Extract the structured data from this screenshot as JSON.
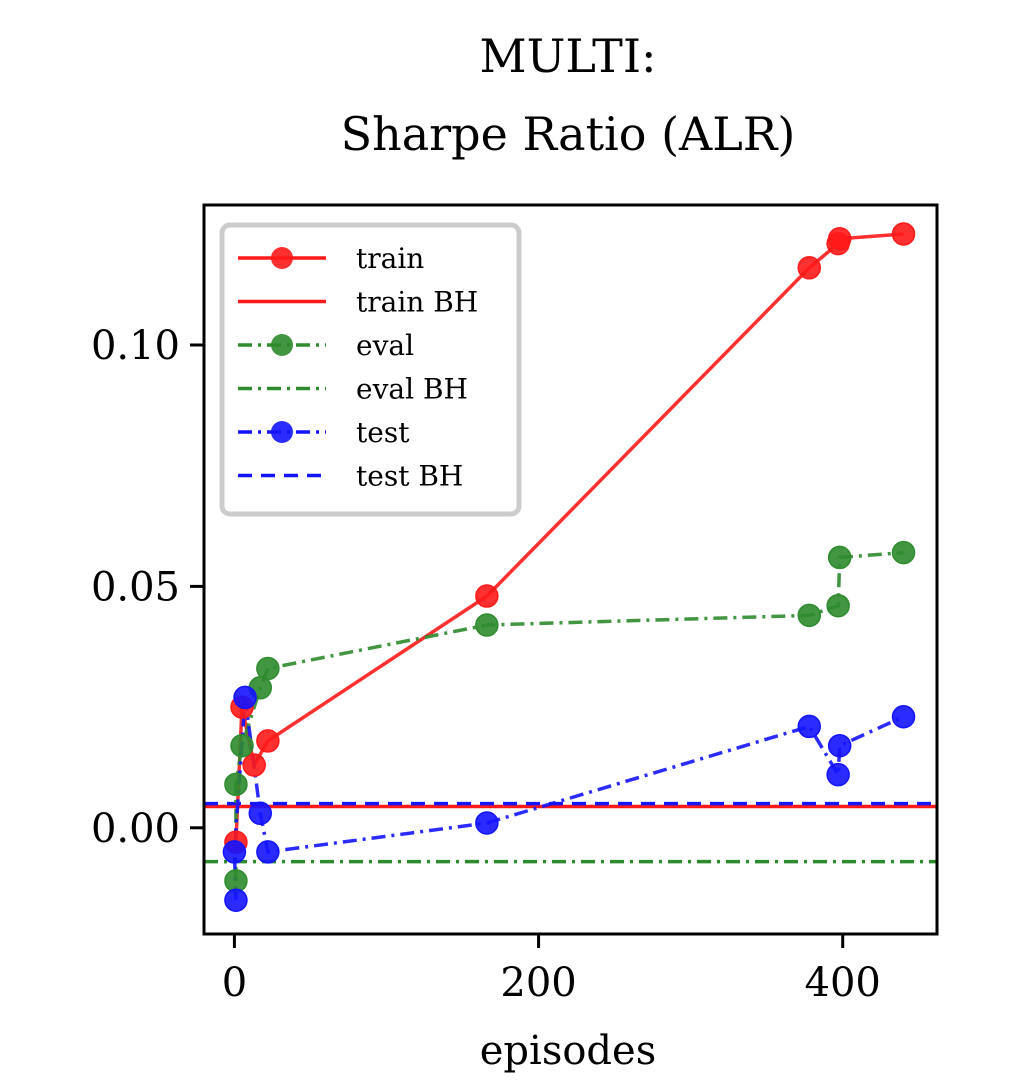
{
  "chart_data": {
    "type": "line",
    "title": "MULTI:",
    "subtitle": "Sharpe Ratio (ALR)",
    "xlabel": "episodes",
    "ylabel": "",
    "xlim": [
      -20,
      462
    ],
    "ylim": [
      -0.022,
      0.129
    ],
    "xticks": [
      0,
      200,
      400
    ],
    "xtick_labels": [
      "0",
      "200",
      "400"
    ],
    "yticks": [
      0.0,
      0.05,
      0.1
    ],
    "ytick_labels": [
      "0.00",
      "0.05",
      "0.10"
    ],
    "grid": false,
    "legend_position": "top-left",
    "series": [
      {
        "name": "train",
        "kind": "line-markers",
        "color": "#ff1a1a",
        "dash": "solid",
        "x": [
          1,
          5,
          13,
          22,
          166,
          378,
          397,
          398,
          440
        ],
        "y": [
          -0.003,
          0.025,
          0.013,
          0.018,
          0.048,
          0.116,
          0.121,
          0.122,
          0.123
        ]
      },
      {
        "name": "train BH",
        "kind": "hline",
        "color": "#ff1a1a",
        "dash": "solid",
        "y": 0.0044
      },
      {
        "name": "eval",
        "kind": "line-markers",
        "color": "#2e8b2e",
        "dash": "dashdot",
        "x": [
          1,
          1,
          5,
          17,
          22,
          166,
          378,
          397,
          398,
          440
        ],
        "y": [
          -0.011,
          0.009,
          0.017,
          0.029,
          0.033,
          0.042,
          0.044,
          0.046,
          0.056,
          0.057
        ]
      },
      {
        "name": "eval BH",
        "kind": "hline",
        "color": "#2e8b2e",
        "dash": "dashdot",
        "y": -0.007
      },
      {
        "name": "test",
        "kind": "line-markers",
        "color": "#1414ff",
        "dash": "dashdot",
        "x": [
          1,
          0,
          7,
          17,
          22,
          166,
          378,
          397,
          398,
          440
        ],
        "y": [
          -0.015,
          -0.005,
          0.027,
          0.003,
          -0.005,
          0.001,
          0.021,
          0.011,
          0.017,
          0.023
        ]
      },
      {
        "name": "test BH",
        "kind": "hline",
        "color": "#1414ff",
        "dash": "dashed",
        "y": 0.005
      }
    ]
  }
}
